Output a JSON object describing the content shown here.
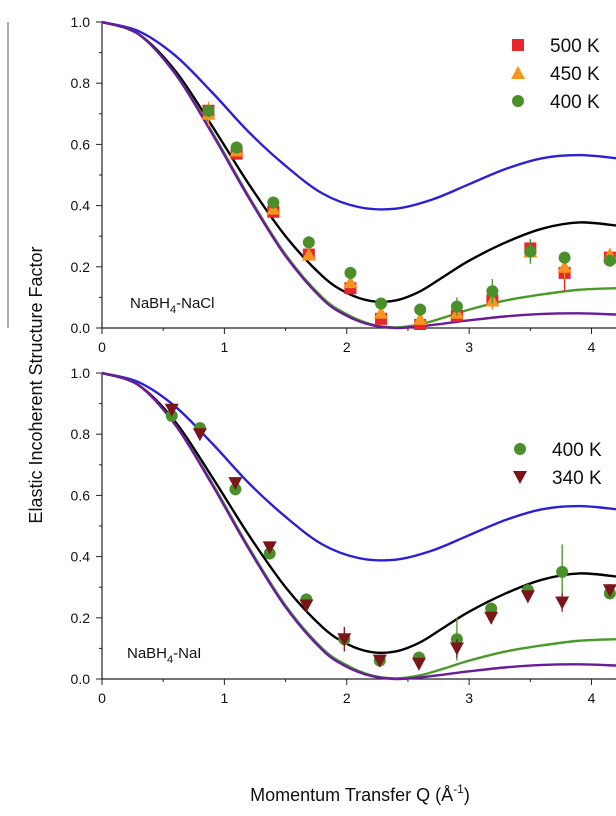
{
  "chart_data": [
    {
      "type": "scatter",
      "panel": "top",
      "title": "",
      "annotation_main": "NaBH",
      "annotation_sub": "4",
      "annotation_rest": "-NaCl",
      "xlabel": "",
      "ylabel": "",
      "xlim": [
        0,
        4.2
      ],
      "ylim": [
        0,
        1.0
      ],
      "xticks": [
        "0",
        "1",
        "2",
        "3",
        "4"
      ],
      "yticks": [
        "0.0",
        "0.2",
        "0.4",
        "0.6",
        "0.8",
        "1.0"
      ],
      "legend_position": "top-right",
      "series": [
        {
          "name": "500 K",
          "marker": "square",
          "color": "#e8252b",
          "x": [
            0.87,
            1.1,
            1.4,
            1.69,
            2.03,
            2.28,
            2.6,
            2.9,
            3.19,
            3.5,
            3.78,
            4.15
          ],
          "y": [
            0.71,
            0.57,
            0.38,
            0.24,
            0.13,
            0.03,
            0.01,
            0.04,
            0.09,
            0.26,
            0.18,
            0.23
          ],
          "err": [
            0.02,
            0.02,
            0.02,
            0.02,
            0.02,
            0.01,
            0.01,
            0.02,
            0.03,
            0.03,
            0.06,
            0.02
          ]
        },
        {
          "name": "450 K",
          "marker": "triangle",
          "color": "#f7941d",
          "x": [
            0.87,
            1.1,
            1.4,
            1.69,
            2.03,
            2.28,
            2.6,
            2.9,
            3.19,
            3.5,
            3.78,
            4.15
          ],
          "y": [
            0.7,
            0.58,
            0.39,
            0.24,
            0.15,
            0.05,
            0.03,
            0.05,
            0.09,
            0.25,
            0.2,
            0.24
          ],
          "err": [
            0.04,
            0.02,
            0.02,
            0.02,
            0.02,
            0.01,
            0.01,
            0.02,
            0.03,
            0.03,
            0.04,
            0.02
          ]
        },
        {
          "name": "400 K",
          "marker": "circle",
          "color": "#4a8f2a",
          "x": [
            0.87,
            1.1,
            1.4,
            1.69,
            2.03,
            2.28,
            2.6,
            2.9,
            3.19,
            3.5,
            3.78,
            4.15
          ],
          "y": [
            0.71,
            0.59,
            0.41,
            0.28,
            0.18,
            0.08,
            0.06,
            0.07,
            0.12,
            0.25,
            0.23,
            0.22
          ],
          "err": [
            0.02,
            0.02,
            0.02,
            0.02,
            0.02,
            0.01,
            0.02,
            0.03,
            0.04,
            0.04,
            0.02,
            0.02
          ]
        }
      ],
      "model_curves": [
        {
          "color": "#2b1fd8",
          "x": [
            0,
            0.3,
            0.6,
            0.9,
            1.2,
            1.5,
            1.8,
            2.1,
            2.4,
            2.7,
            3.0,
            3.3,
            3.6,
            3.9,
            4.2
          ],
          "y": [
            1.0,
            0.97,
            0.89,
            0.77,
            0.64,
            0.53,
            0.44,
            0.395,
            0.39,
            0.42,
            0.47,
            0.52,
            0.555,
            0.565,
            0.555
          ]
        },
        {
          "color": "#000000",
          "x": [
            0,
            0.3,
            0.6,
            0.9,
            1.2,
            1.5,
            1.8,
            2.0,
            2.2,
            2.4,
            2.6,
            2.8,
            3.0,
            3.3,
            3.6,
            3.9,
            4.2
          ],
          "y": [
            1.0,
            0.96,
            0.84,
            0.66,
            0.47,
            0.3,
            0.17,
            0.115,
            0.088,
            0.09,
            0.12,
            0.17,
            0.22,
            0.28,
            0.325,
            0.345,
            0.335
          ]
        },
        {
          "color": "#4a9a2a",
          "x": [
            0,
            0.3,
            0.6,
            0.9,
            1.2,
            1.5,
            1.8,
            2.0,
            2.2,
            2.4,
            2.6,
            2.8,
            3.0,
            3.3,
            3.6,
            3.9,
            4.2
          ],
          "y": [
            1.0,
            0.96,
            0.83,
            0.64,
            0.43,
            0.24,
            0.1,
            0.045,
            0.012,
            0.002,
            0.012,
            0.035,
            0.06,
            0.09,
            0.11,
            0.125,
            0.13
          ]
        },
        {
          "color": "#6a1b9a",
          "x": [
            0,
            0.3,
            0.6,
            0.9,
            1.2,
            1.5,
            1.8,
            2.0,
            2.2,
            2.4,
            2.6,
            2.8,
            3.0,
            3.3,
            3.6,
            3.9,
            4.2
          ],
          "y": [
            1.0,
            0.96,
            0.83,
            0.635,
            0.425,
            0.235,
            0.095,
            0.04,
            0.01,
            0.0,
            0.005,
            0.015,
            0.025,
            0.038,
            0.046,
            0.048,
            0.044
          ]
        }
      ]
    },
    {
      "type": "scatter",
      "panel": "bottom",
      "title": "",
      "annotation_main": "NaBH",
      "annotation_sub": "4",
      "annotation_rest": "-NaI",
      "xlabel_main": "Momentum Transfer Q (Å",
      "xlabel_sup": "-1",
      "xlabel_end": ")",
      "ylabel": "Elastic Incoherent Structure Factor",
      "xlim": [
        0,
        4.2
      ],
      "ylim": [
        0,
        1.0
      ],
      "xticks": [
        "0",
        "1",
        "2",
        "3",
        "4"
      ],
      "yticks": [
        "0.0",
        "0.2",
        "0.4",
        "0.6",
        "0.8",
        "1.0"
      ],
      "legend_position": "top-right",
      "series": [
        {
          "name": "400 K",
          "marker": "circle",
          "color": "#4a8f2a",
          "x": [
            0.57,
            0.8,
            1.09,
            1.37,
            1.67,
            1.98,
            2.27,
            2.59,
            2.9,
            3.18,
            3.48,
            3.76,
            4.15
          ],
          "y": [
            0.86,
            0.82,
            0.62,
            0.41,
            0.26,
            0.13,
            0.06,
            0.07,
            0.13,
            0.23,
            0.29,
            0.35,
            0.28
          ],
          "err": [
            0.01,
            0.01,
            0.02,
            0.02,
            0.02,
            0.02,
            0.02,
            0.02,
            0.07,
            0.02,
            0.02,
            0.09,
            0.02
          ]
        },
        {
          "name": "340 K",
          "marker": "triangle-down",
          "color": "#7a1518",
          "x": [
            0.57,
            0.8,
            1.09,
            1.37,
            1.67,
            1.98,
            2.27,
            2.59,
            2.9,
            3.18,
            3.48,
            3.76,
            4.15
          ],
          "y": [
            0.88,
            0.8,
            0.64,
            0.43,
            0.24,
            0.13,
            0.06,
            0.05,
            0.1,
            0.2,
            0.27,
            0.25,
            0.29
          ],
          "err": [
            0.01,
            0.01,
            0.02,
            0.02,
            0.02,
            0.04,
            0.02,
            0.02,
            0.03,
            0.02,
            0.02,
            0.03,
            0.02
          ]
        }
      ],
      "model_curves": [
        {
          "color": "#2b1fd8",
          "x": [
            0,
            0.3,
            0.6,
            0.9,
            1.2,
            1.5,
            1.8,
            2.1,
            2.4,
            2.7,
            3.0,
            3.3,
            3.6,
            3.9,
            4.2
          ],
          "y": [
            1.0,
            0.97,
            0.89,
            0.77,
            0.64,
            0.53,
            0.44,
            0.395,
            0.39,
            0.42,
            0.47,
            0.52,
            0.555,
            0.565,
            0.555
          ]
        },
        {
          "color": "#000000",
          "x": [
            0,
            0.3,
            0.6,
            0.9,
            1.2,
            1.5,
            1.8,
            2.0,
            2.2,
            2.4,
            2.6,
            2.8,
            3.0,
            3.3,
            3.6,
            3.9,
            4.2
          ],
          "y": [
            1.0,
            0.96,
            0.84,
            0.66,
            0.47,
            0.3,
            0.17,
            0.115,
            0.088,
            0.09,
            0.12,
            0.17,
            0.22,
            0.28,
            0.325,
            0.345,
            0.335
          ]
        },
        {
          "color": "#4a9a2a",
          "x": [
            0,
            0.3,
            0.6,
            0.9,
            1.2,
            1.5,
            1.8,
            2.0,
            2.2,
            2.4,
            2.6,
            2.8,
            3.0,
            3.3,
            3.6,
            3.9,
            4.2
          ],
          "y": [
            1.0,
            0.96,
            0.83,
            0.64,
            0.43,
            0.24,
            0.1,
            0.045,
            0.012,
            0.002,
            0.012,
            0.035,
            0.06,
            0.09,
            0.11,
            0.125,
            0.13
          ]
        },
        {
          "color": "#6a1b9a",
          "x": [
            0,
            0.3,
            0.6,
            0.9,
            1.2,
            1.5,
            1.8,
            2.0,
            2.2,
            2.4,
            2.6,
            2.8,
            3.0,
            3.3,
            3.6,
            3.9,
            4.2
          ],
          "y": [
            1.0,
            0.96,
            0.83,
            0.635,
            0.425,
            0.235,
            0.095,
            0.04,
            0.01,
            0.0,
            0.005,
            0.015,
            0.025,
            0.038,
            0.046,
            0.048,
            0.044
          ]
        }
      ]
    }
  ]
}
